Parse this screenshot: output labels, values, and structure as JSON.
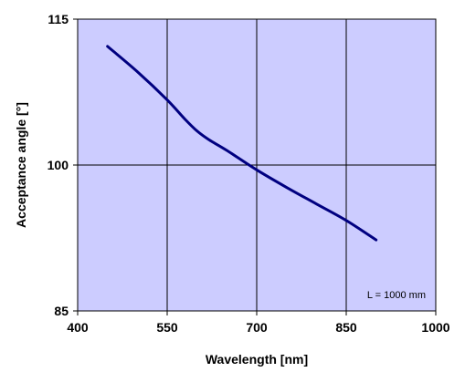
{
  "chart_data": {
    "type": "line",
    "title": "",
    "xlabel": "Wavelength [nm]",
    "ylabel": "Acceptance angle [°]",
    "xlim": [
      400,
      1000
    ],
    "ylim": [
      85,
      115
    ],
    "xticks": [
      400,
      550,
      700,
      850,
      1000
    ],
    "yticks": [
      85,
      100,
      115
    ],
    "grid": true,
    "annotation": "L = 1000 mm",
    "series": [
      {
        "x": [
          450,
          500,
          550,
          580,
          600,
          620,
          650,
          700,
          750,
          800,
          850,
          900
        ],
        "y": [
          112.2,
          109.6,
          106.7,
          104.7,
          103.5,
          102.6,
          101.5,
          99.5,
          97.7,
          96.0,
          94.3,
          92.3
        ]
      }
    ],
    "colors": {
      "plot_background": "#ccccff",
      "line": "#000080",
      "grid": "#000000"
    }
  }
}
